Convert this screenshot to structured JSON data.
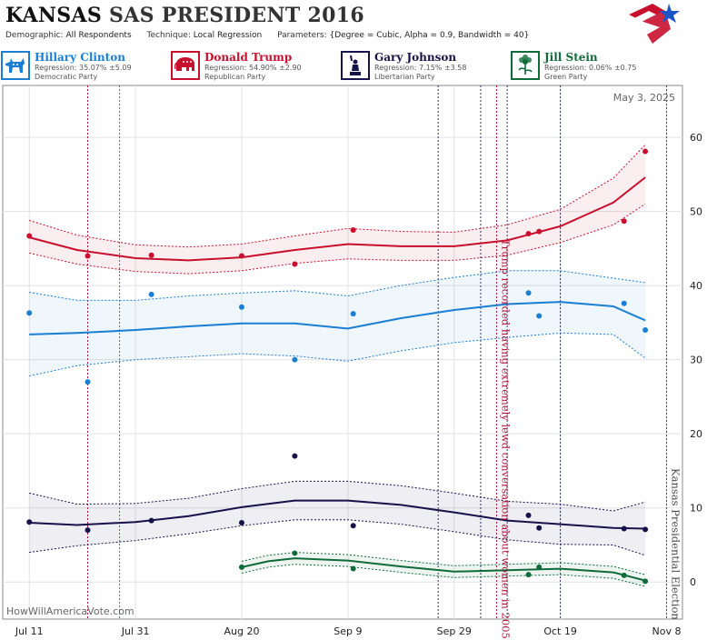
{
  "header": {
    "state": "KANSAS",
    "rest": "SAS PRESIDENT 2016",
    "demographic_label": "Demographic:",
    "demographic_value": "All Respondents",
    "technique_label": "Technique:",
    "technique_value": "Local Regression",
    "parameters_label": "Parameters:",
    "parameters_value": "{Degree = Cubic, Alpha = 0.9, Bandwidth = 40}"
  },
  "candidates": [
    {
      "name": "Hillary Clinton",
      "regression": "Regression: 35.07% ±5.09",
      "party": "Democratic Party",
      "color": "#1a7fd4",
      "icon": "donkey-icon"
    },
    {
      "name": "Donald Trump",
      "regression": "Regression: 54.90% ±2.90",
      "party": "Republican Party",
      "color": "#c8102e",
      "icon": "elephant-icon"
    },
    {
      "name": "Gary Johnson",
      "regression": "Regression: 7.15% ±3.58",
      "party": "Libertarian Party",
      "color": "#16124a",
      "icon": "liberty-statue-icon"
    },
    {
      "name": "Jill Stein",
      "regression": "Regression: 0.06% ±0.75",
      "party": "Green Party",
      "color": "#0f6b3a",
      "icon": "flower-icon"
    }
  ],
  "chart_data": {
    "type": "line",
    "date_label": "May 3, 2025",
    "watermark": "HowWillAmericaVote.com",
    "x_ticks": [
      "Jul 11",
      "Jul 31",
      "Aug 20",
      "Sep 9",
      "Sep 29",
      "Oct 19",
      "Nov 8"
    ],
    "y_ticks": [
      0,
      10,
      20,
      30,
      40,
      50,
      60
    ],
    "xlim": [
      "2016-07-06",
      "2016-11-11"
    ],
    "ylim": [
      -5,
      67
    ],
    "grid": true,
    "annotations": [
      {
        "date": "2016-10-07",
        "text": "Trump recorded having extremely lewd conversation about women in 2005",
        "color": "#b0123a"
      },
      {
        "date": "2016-11-08",
        "text": "Kansas Presidential Election",
        "color": "#444444"
      }
    ],
    "event_lines": [
      {
        "date": "2016-07-22",
        "color": "#b0123a"
      },
      {
        "date": "2016-07-28",
        "color": "#1a7fd4"
      },
      {
        "date": "2016-09-26",
        "color": "#333366"
      },
      {
        "date": "2016-10-04",
        "color": "#333366"
      },
      {
        "date": "2016-10-07",
        "color": "#b0123a"
      },
      {
        "date": "2016-10-09",
        "color": "#333366"
      },
      {
        "date": "2016-10-19",
        "color": "#333366"
      },
      {
        "date": "2016-11-08",
        "color": "#444444"
      }
    ],
    "series": [
      {
        "name": "Donald Trump",
        "color": "#c8102e",
        "points": [
          [
            "2016-07-11",
            46.7
          ],
          [
            "2016-07-22",
            44.0
          ],
          [
            "2016-08-03",
            44.1
          ],
          [
            "2016-08-20",
            44.0
          ],
          [
            "2016-08-30",
            42.9
          ],
          [
            "2016-09-10",
            47.5
          ],
          [
            "2016-10-13",
            47.0
          ],
          [
            "2016-10-15",
            47.3
          ],
          [
            "2016-10-31",
            48.7
          ],
          [
            "2016-11-04",
            58.1
          ]
        ],
        "trend": [
          [
            "2016-07-11",
            46.5
          ],
          [
            "2016-07-20",
            44.8
          ],
          [
            "2016-07-31",
            43.7
          ],
          [
            "2016-08-10",
            43.4
          ],
          [
            "2016-08-20",
            43.8
          ],
          [
            "2016-08-30",
            44.8
          ],
          [
            "2016-09-09",
            45.6
          ],
          [
            "2016-09-19",
            45.3
          ],
          [
            "2016-09-29",
            45.3
          ],
          [
            "2016-10-09",
            46.1
          ],
          [
            "2016-10-19",
            48.0
          ],
          [
            "2016-10-29",
            51.2
          ],
          [
            "2016-11-04",
            54.6
          ]
        ],
        "upper": [
          [
            "2016-07-11",
            48.8
          ],
          [
            "2016-07-20",
            46.8
          ],
          [
            "2016-07-31",
            45.5
          ],
          [
            "2016-08-10",
            45.2
          ],
          [
            "2016-08-20",
            45.6
          ],
          [
            "2016-08-30",
            46.7
          ],
          [
            "2016-09-09",
            47.7
          ],
          [
            "2016-09-19",
            47.3
          ],
          [
            "2016-09-29",
            47.2
          ],
          [
            "2016-10-09",
            48.2
          ],
          [
            "2016-10-19",
            50.3
          ],
          [
            "2016-10-29",
            54.5
          ],
          [
            "2016-11-04",
            59.0
          ]
        ],
        "lower": [
          [
            "2016-07-11",
            44.4
          ],
          [
            "2016-07-20",
            42.9
          ],
          [
            "2016-07-31",
            41.9
          ],
          [
            "2016-08-10",
            41.6
          ],
          [
            "2016-08-20",
            42.0
          ],
          [
            "2016-08-30",
            43.0
          ],
          [
            "2016-09-09",
            43.6
          ],
          [
            "2016-09-19",
            43.4
          ],
          [
            "2016-09-29",
            43.4
          ],
          [
            "2016-10-09",
            44.1
          ],
          [
            "2016-10-19",
            45.8
          ],
          [
            "2016-10-29",
            48.2
          ],
          [
            "2016-11-04",
            51.0
          ]
        ]
      },
      {
        "name": "Hillary Clinton",
        "color": "#1a7fd4",
        "points": [
          [
            "2016-07-11",
            36.3
          ],
          [
            "2016-07-22",
            27.0
          ],
          [
            "2016-08-03",
            38.8
          ],
          [
            "2016-08-20",
            37.1
          ],
          [
            "2016-08-30",
            30.0
          ],
          [
            "2016-09-10",
            36.2
          ],
          [
            "2016-10-13",
            39.0
          ],
          [
            "2016-10-15",
            35.9
          ],
          [
            "2016-10-31",
            37.6
          ],
          [
            "2016-11-04",
            34.0
          ]
        ],
        "trend": [
          [
            "2016-07-11",
            33.4
          ],
          [
            "2016-07-20",
            33.6
          ],
          [
            "2016-07-31",
            34.0
          ],
          [
            "2016-08-10",
            34.5
          ],
          [
            "2016-08-20",
            34.9
          ],
          [
            "2016-08-30",
            34.9
          ],
          [
            "2016-09-09",
            34.2
          ],
          [
            "2016-09-19",
            35.6
          ],
          [
            "2016-09-29",
            36.7
          ],
          [
            "2016-10-09",
            37.5
          ],
          [
            "2016-10-19",
            37.8
          ],
          [
            "2016-10-29",
            37.2
          ],
          [
            "2016-11-04",
            35.3
          ]
        ],
        "upper": [
          [
            "2016-07-11",
            39.1
          ],
          [
            "2016-07-20",
            38.0
          ],
          [
            "2016-07-31",
            38.0
          ],
          [
            "2016-08-10",
            38.6
          ],
          [
            "2016-08-20",
            39.0
          ],
          [
            "2016-08-30",
            39.3
          ],
          [
            "2016-09-09",
            38.6
          ],
          [
            "2016-09-19",
            40.0
          ],
          [
            "2016-09-29",
            41.1
          ],
          [
            "2016-10-09",
            42.0
          ],
          [
            "2016-10-19",
            42.0
          ],
          [
            "2016-10-29",
            41.0
          ],
          [
            "2016-11-04",
            40.4
          ]
        ],
        "lower": [
          [
            "2016-07-11",
            27.8
          ],
          [
            "2016-07-20",
            29.2
          ],
          [
            "2016-07-31",
            30.0
          ],
          [
            "2016-08-10",
            30.4
          ],
          [
            "2016-08-20",
            30.8
          ],
          [
            "2016-08-30",
            30.5
          ],
          [
            "2016-09-09",
            29.8
          ],
          [
            "2016-09-19",
            31.2
          ],
          [
            "2016-09-29",
            32.3
          ],
          [
            "2016-10-09",
            33.0
          ],
          [
            "2016-10-19",
            33.6
          ],
          [
            "2016-10-29",
            33.4
          ],
          [
            "2016-11-04",
            30.2
          ]
        ]
      },
      {
        "name": "Gary Johnson",
        "color": "#16124a",
        "points": [
          [
            "2016-07-11",
            8.1
          ],
          [
            "2016-07-22",
            7.0
          ],
          [
            "2016-08-03",
            8.3
          ],
          [
            "2016-08-20",
            8.0
          ],
          [
            "2016-08-30",
            17.0
          ],
          [
            "2016-09-10",
            7.6
          ],
          [
            "2016-10-13",
            9.0
          ],
          [
            "2016-10-15",
            7.3
          ],
          [
            "2016-10-31",
            7.2
          ],
          [
            "2016-11-04",
            7.1
          ]
        ],
        "trend": [
          [
            "2016-07-11",
            8.0
          ],
          [
            "2016-07-20",
            7.7
          ],
          [
            "2016-07-31",
            8.1
          ],
          [
            "2016-08-10",
            8.9
          ],
          [
            "2016-08-20",
            10.1
          ],
          [
            "2016-08-30",
            11.0
          ],
          [
            "2016-09-09",
            11.0
          ],
          [
            "2016-09-19",
            10.4
          ],
          [
            "2016-09-29",
            9.4
          ],
          [
            "2016-10-09",
            8.3
          ],
          [
            "2016-10-19",
            7.8
          ],
          [
            "2016-10-29",
            7.3
          ],
          [
            "2016-11-04",
            7.2
          ]
        ],
        "upper": [
          [
            "2016-07-11",
            12.0
          ],
          [
            "2016-07-20",
            10.5
          ],
          [
            "2016-07-31",
            10.6
          ],
          [
            "2016-08-10",
            11.3
          ],
          [
            "2016-08-20",
            12.6
          ],
          [
            "2016-08-30",
            13.6
          ],
          [
            "2016-09-09",
            13.6
          ],
          [
            "2016-09-19",
            13.0
          ],
          [
            "2016-09-29",
            12.0
          ],
          [
            "2016-10-09",
            10.9
          ],
          [
            "2016-10-19",
            10.5
          ],
          [
            "2016-10-29",
            9.6
          ],
          [
            "2016-11-04",
            10.8
          ]
        ],
        "lower": [
          [
            "2016-07-11",
            4.0
          ],
          [
            "2016-07-20",
            4.9
          ],
          [
            "2016-07-31",
            5.6
          ],
          [
            "2016-08-10",
            6.5
          ],
          [
            "2016-08-20",
            7.6
          ],
          [
            "2016-08-30",
            8.4
          ],
          [
            "2016-09-09",
            8.4
          ],
          [
            "2016-09-19",
            7.8
          ],
          [
            "2016-09-29",
            6.8
          ],
          [
            "2016-10-09",
            5.7
          ],
          [
            "2016-10-19",
            5.1
          ],
          [
            "2016-10-29",
            5.0
          ],
          [
            "2016-11-04",
            3.6
          ]
        ]
      },
      {
        "name": "Jill Stein",
        "color": "#0f6b3a",
        "points": [
          [
            "2016-08-20",
            2.0
          ],
          [
            "2016-08-30",
            3.9
          ],
          [
            "2016-09-10",
            1.8
          ],
          [
            "2016-10-13",
            1.0
          ],
          [
            "2016-10-15",
            2.0
          ],
          [
            "2016-10-31",
            0.9
          ],
          [
            "2016-11-04",
            0.1
          ]
        ],
        "trend": [
          [
            "2016-08-20",
            2.0
          ],
          [
            "2016-08-25",
            2.8
          ],
          [
            "2016-08-30",
            3.2
          ],
          [
            "2016-09-09",
            2.9
          ],
          [
            "2016-09-19",
            2.1
          ],
          [
            "2016-09-29",
            1.4
          ],
          [
            "2016-10-09",
            1.6
          ],
          [
            "2016-10-19",
            1.8
          ],
          [
            "2016-10-29",
            1.3
          ],
          [
            "2016-11-04",
            0.2
          ]
        ],
        "upper": [
          [
            "2016-08-20",
            2.8
          ],
          [
            "2016-08-25",
            3.6
          ],
          [
            "2016-08-30",
            4.0
          ],
          [
            "2016-09-09",
            3.7
          ],
          [
            "2016-09-19",
            2.9
          ],
          [
            "2016-09-29",
            2.2
          ],
          [
            "2016-10-09",
            2.4
          ],
          [
            "2016-10-19",
            2.6
          ],
          [
            "2016-10-29",
            2.1
          ],
          [
            "2016-11-04",
            1.0
          ]
        ],
        "lower": [
          [
            "2016-08-20",
            1.2
          ],
          [
            "2016-08-25",
            2.0
          ],
          [
            "2016-08-30",
            2.4
          ],
          [
            "2016-09-09",
            2.1
          ],
          [
            "2016-09-19",
            1.3
          ],
          [
            "2016-09-29",
            0.6
          ],
          [
            "2016-10-09",
            0.8
          ],
          [
            "2016-10-19",
            1.0
          ],
          [
            "2016-10-29",
            0.5
          ],
          [
            "2016-11-04",
            -0.6
          ]
        ]
      }
    ]
  }
}
